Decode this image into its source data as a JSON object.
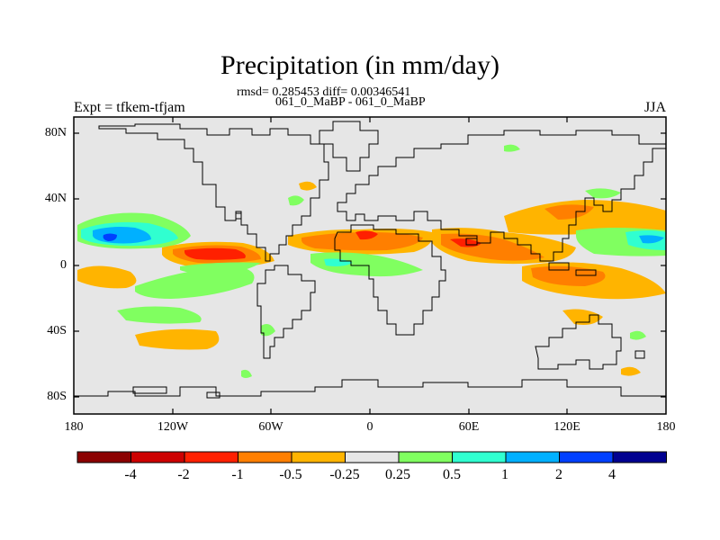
{
  "title": "Precipitation (in mm/day)",
  "stats": "rmsd= 0.285453 diff= 0.00346541",
  "subtitle": "061_0_MaBP - 061_0_MaBP",
  "left_label": "Expt = tfkem-tfjam",
  "right_label": "JJA",
  "y_ticks": [
    "80N",
    "40N",
    "0",
    "40S",
    "80S"
  ],
  "x_ticks": [
    "180",
    "120W",
    "60W",
    "0",
    "60E",
    "120E",
    "180"
  ],
  "colorbar": {
    "labels": [
      "-4",
      "-2",
      "-1",
      "-0.5",
      "-0.25",
      "0.25",
      "0.5",
      "1",
      "2",
      "4"
    ],
    "colors": [
      "#8b0000",
      "#cd0000",
      "#ff2000",
      "#ff7f00",
      "#ffb400",
      "#e6e6e6",
      "#80ff60",
      "#30ffd0",
      "#00b0ff",
      "#0040ff",
      "#000090"
    ]
  },
  "map": {
    "background_color": "#e6e6e6",
    "region": "global",
    "lon_range": [
      -180,
      180
    ],
    "lat_range": [
      -90,
      90
    ]
  }
}
